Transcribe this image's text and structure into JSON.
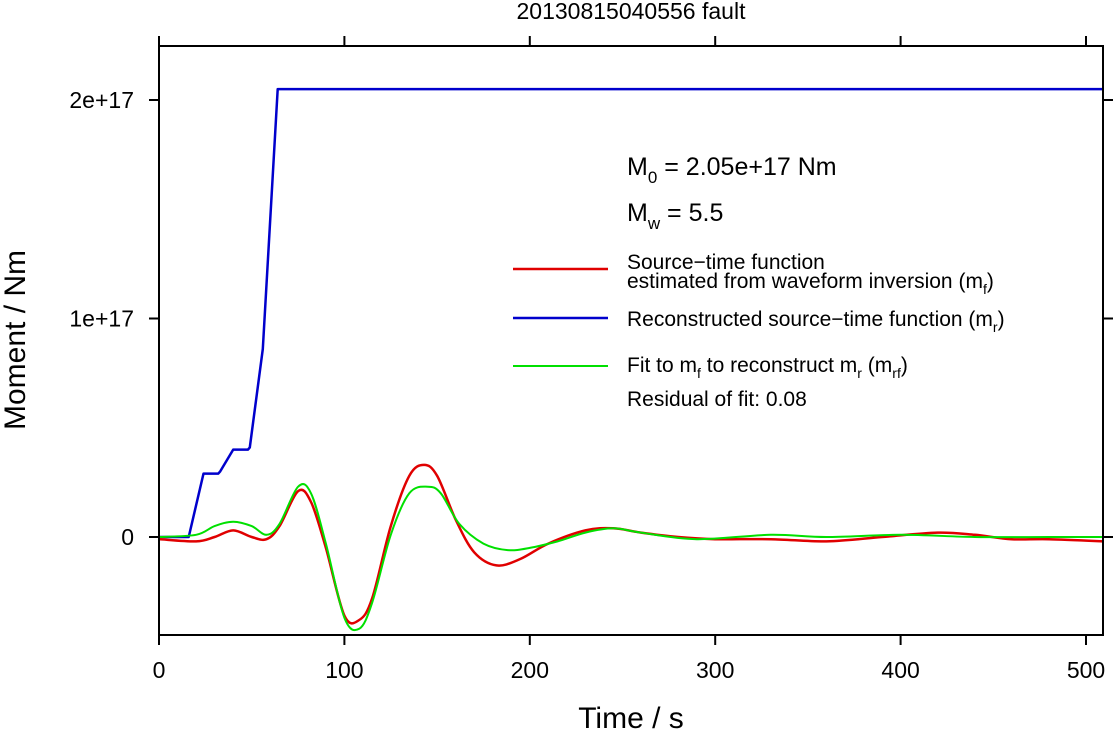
{
  "chart_data": {
    "type": "line",
    "title": "20130815040556 fault",
    "xlabel": "Time / s",
    "ylabel": "Moment / Nm",
    "xlim": [
      0,
      510
    ],
    "ylim": [
      -4.5e+16,
      2.25e+17
    ],
    "x_ticks": [
      0,
      100,
      200,
      300,
      400,
      500
    ],
    "x_tick_labels": [
      "0",
      "100",
      "200",
      "300",
      "400",
      "500"
    ],
    "y_ticks": [
      0,
      1e+17,
      2e+17
    ],
    "y_tick_labels": [
      "0",
      "1e+17",
      "2e+17"
    ],
    "grid": false,
    "legend_position": "right",
    "annotations": {
      "m0": {
        "base": "M",
        "sub": "0",
        "text": " = 2.05e+17 Nm"
      },
      "mw": {
        "base": "M",
        "sub": "w",
        "text": " = 5.5"
      },
      "residual": "Residual of fit: 0.08"
    },
    "legend": [
      {
        "color": "#e00000",
        "lines": [
          "Source−time function",
          "estimated from waveform inversion (m",
          "f",
          ")"
        ]
      },
      {
        "color": "#0000cc",
        "lines": [
          "Reconstructed source−time function (m",
          "r",
          ")"
        ]
      },
      {
        "color": "#00e000",
        "lines": [
          "Fit to m",
          "f",
          " to reconstruct m",
          "r",
          " (m",
          "rf",
          ")"
        ]
      }
    ],
    "series": [
      {
        "color": "#0000cc",
        "x": [
          0,
          16,
          24,
          32,
          33,
          40,
          48,
          49,
          56,
          64,
          510
        ],
        "y": [
          0,
          0,
          2.9e+16,
          2.9e+16,
          3e+16,
          4e+16,
          4e+16,
          4.1e+16,
          8.6e+16,
          2.05e+17,
          2.05e+17
        ]
      },
      {
        "color": "#e00000",
        "x": [
          0,
          20,
          30,
          40,
          50,
          58,
          65,
          75,
          82,
          90,
          100,
          108,
          115,
          125,
          135,
          143,
          150,
          160,
          170,
          182,
          195,
          210,
          230,
          245,
          260,
          280,
          300,
          330,
          360,
          390,
          420,
          440,
          460,
          480,
          510
        ],
        "y": [
          -1000000000000000.0,
          -2000000000000000.0,
          0,
          3000000000000000.0,
          0,
          -1000000000000000.0,
          5000000000000000.0,
          2.1e+16,
          1.6e+16,
          -5000000000000000.0,
          -3.6e+16,
          -3.8e+16,
          -2.8e+16,
          5000000000000000.0,
          2.8e+16,
          3.3e+16,
          2.8e+16,
          8000000000000000.0,
          -7000000000000000.0,
          -1.3e+16,
          -1e+16,
          -3000000000000000.0,
          3000000000000000.0,
          4000000000000000.0,
          2000000000000000.0,
          0,
          -1000000000000000.0,
          -1000000000000000.0,
          -2000000000000000.0,
          0,
          2000000000000000.0,
          1000000000000000.0,
          -1000000000000000.0,
          -1000000000000000.0,
          -2000000000000000.0
        ]
      },
      {
        "color": "#00e000",
        "x": [
          0,
          20,
          30,
          40,
          50,
          58,
          65,
          75,
          82,
          90,
          100,
          108,
          115,
          125,
          135,
          145,
          152,
          162,
          175,
          188,
          200,
          215,
          230,
          245,
          260,
          290,
          330,
          360,
          400,
          440,
          480,
          510
        ],
        "y": [
          0,
          1000000000000000.0,
          5000000000000000.0,
          7000000000000000.0,
          5000000000000000.0,
          1000000000000000.0,
          6000000000000000.0,
          2.3e+16,
          2e+16,
          -3000000000000000.0,
          -3.7e+16,
          -4.2e+16,
          -3e+16,
          1000000000000000.0,
          2e+16,
          2.3e+16,
          2e+16,
          6000000000000000.0,
          -3000000000000000.0,
          -6000000000000000.0,
          -5000000000000000.0,
          -2000000000000000.0,
          2000000000000000.0,
          4000000000000000.0,
          2000000000000000.0,
          -1000000000000000.0,
          1000000000000000.0,
          0,
          1000000000000000.0,
          0,
          0,
          0
        ]
      }
    ]
  }
}
